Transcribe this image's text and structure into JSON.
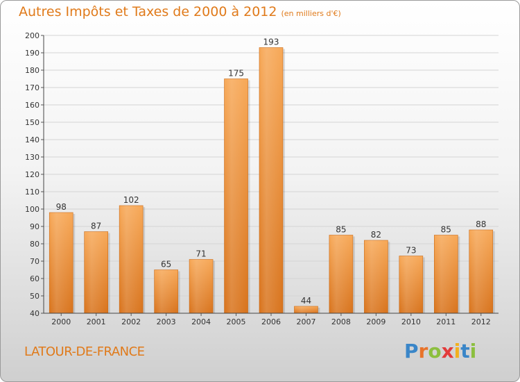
{
  "title": "Autres Impôts et Taxes de 2000 à 2012",
  "subtitle": "(en milliers d'€)",
  "commune": "LATOUR-DE-FRANCE",
  "logo": {
    "text": "Proxiti",
    "letter_colors": [
      "#3a86c8",
      "#e8732a",
      "#8cbf3f",
      "#e33b3b",
      "#f2b01e",
      "#3a86c8",
      "#8cbf3f"
    ]
  },
  "colors": {
    "bar_light": "#f7a857",
    "bar_dark": "#d8731c",
    "title": "#e07a1a"
  },
  "chart_data": {
    "type": "bar",
    "categories": [
      "2000",
      "2001",
      "2002",
      "2003",
      "2004",
      "2005",
      "2006",
      "2007",
      "2008",
      "2009",
      "2010",
      "2011",
      "2012"
    ],
    "values": [
      98,
      87,
      102,
      65,
      71,
      175,
      193,
      44,
      85,
      82,
      73,
      85,
      88
    ],
    "ylim": [
      40,
      200
    ],
    "yticks": [
      40,
      50,
      60,
      70,
      80,
      90,
      100,
      110,
      120,
      130,
      140,
      150,
      160,
      170,
      180,
      190,
      200
    ],
    "grid": true,
    "data_labels": true
  }
}
